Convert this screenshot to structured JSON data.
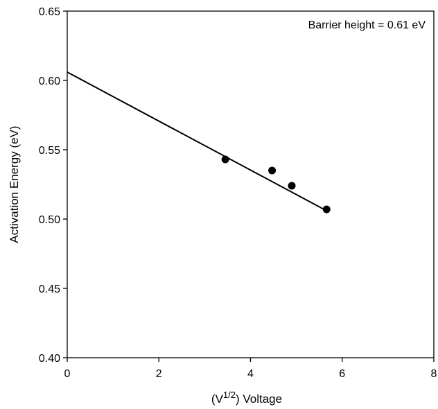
{
  "chart_data": {
    "type": "scatter",
    "title": "",
    "xlabel_main": "(V",
    "xlabel_sup": "1/2",
    "xlabel_rest": ") Voltage",
    "ylabel": "Activation Energy (eV)",
    "xlim": [
      0,
      8
    ],
    "ylim": [
      0.4,
      0.65
    ],
    "xticks": [
      "0",
      "2",
      "4",
      "6",
      "8"
    ],
    "yticks": [
      "0.40",
      "0.45",
      "0.50",
      "0.55",
      "0.60",
      "0.65"
    ],
    "grid": false,
    "legend": "none",
    "annotation": "Barrier height = 0.61 eV",
    "points": [
      {
        "x": 3.45,
        "y": 0.543
      },
      {
        "x": 4.47,
        "y": 0.535
      },
      {
        "x": 4.9,
        "y": 0.524
      },
      {
        "x": 5.66,
        "y": 0.507
      }
    ],
    "fit_line": {
      "x": [
        0,
        5.66
      ],
      "y": [
        0.606,
        0.506
      ]
    }
  }
}
